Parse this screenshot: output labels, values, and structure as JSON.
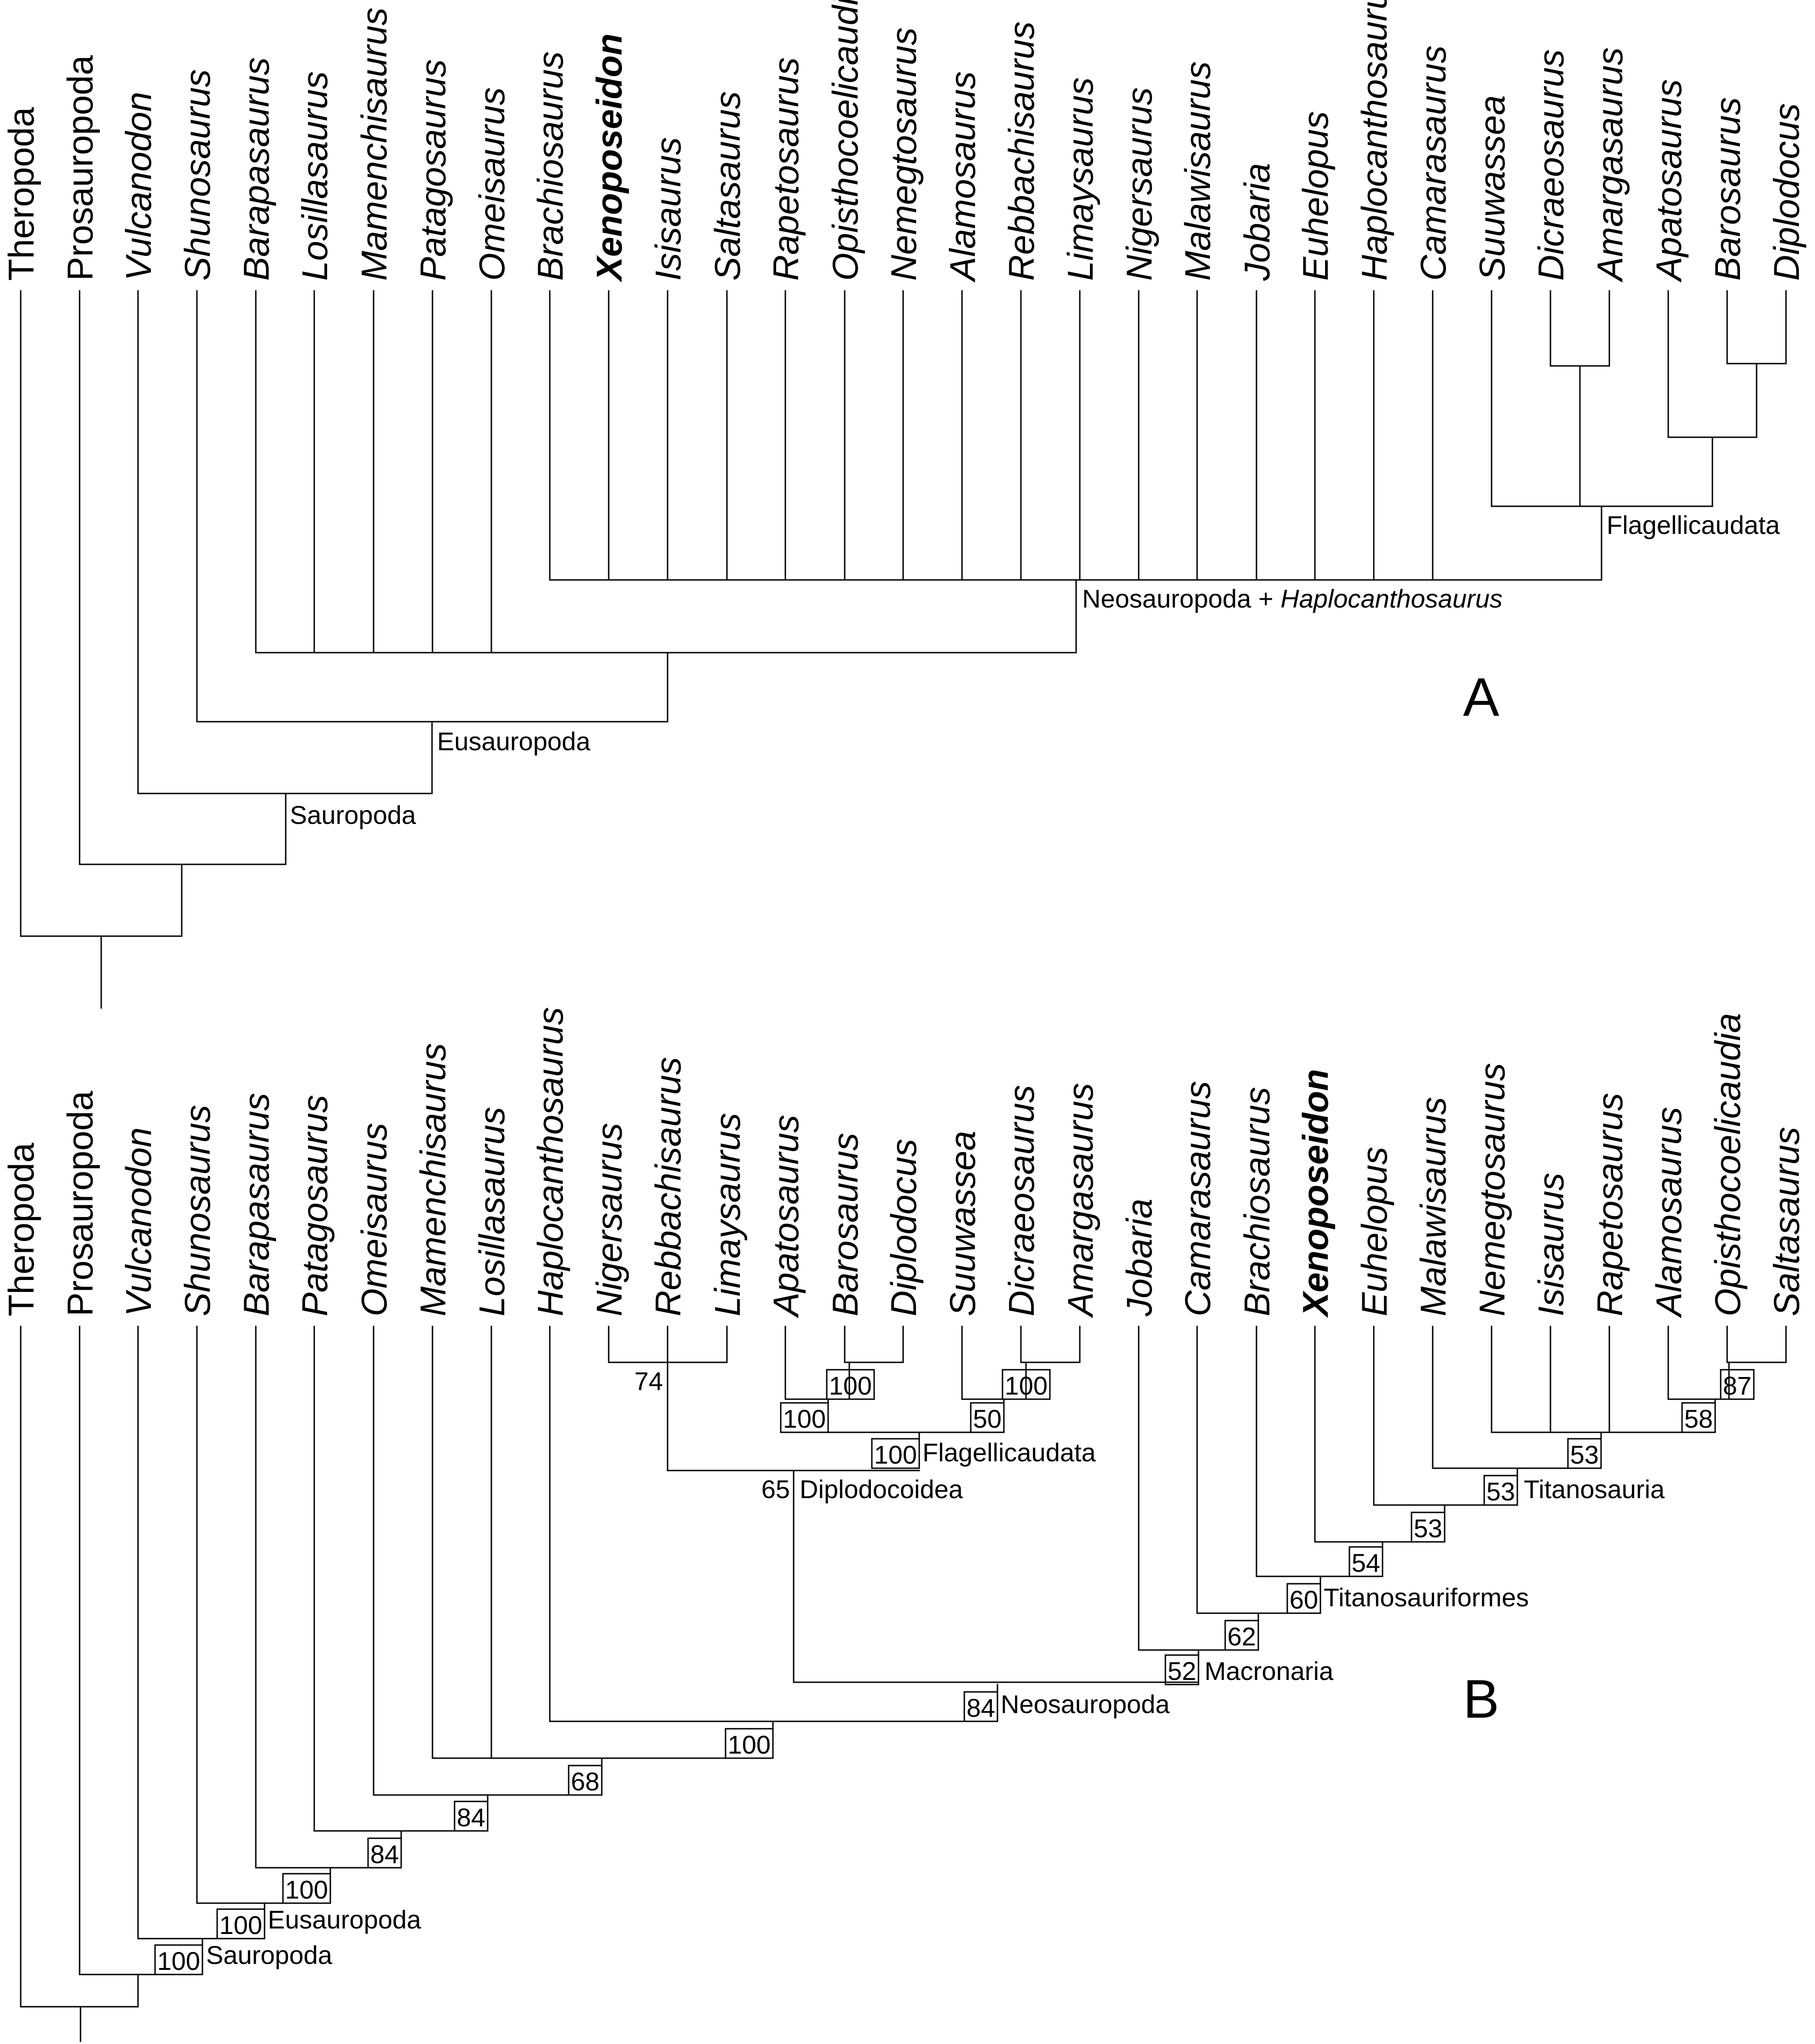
{
  "panel_a": {
    "letter": "A",
    "taxa": [
      {
        "name": "Theropoda",
        "style": "roman"
      },
      {
        "name": "Prosauropoda",
        "style": "roman"
      },
      {
        "name": "Vulcanodon",
        "style": "italic"
      },
      {
        "name": "Shunosaurus",
        "style": "italic"
      },
      {
        "name": "Barapasaurus",
        "style": "italic"
      },
      {
        "name": "Losillasaurus",
        "style": "italic"
      },
      {
        "name": "Mamenchisaurus",
        "style": "italic"
      },
      {
        "name": "Patagosaurus",
        "style": "italic"
      },
      {
        "name": "Omeisaurus",
        "style": "italic"
      },
      {
        "name": "Brachiosaurus",
        "style": "italic"
      },
      {
        "name": "Xenoposeidon",
        "style": "bold"
      },
      {
        "name": "Isisaurus",
        "style": "italic"
      },
      {
        "name": "Saltasaurus",
        "style": "italic"
      },
      {
        "name": "Rapetosaurus",
        "style": "italic"
      },
      {
        "name": "Opisthocoelicaudia",
        "style": "italic"
      },
      {
        "name": "Nemegtosaurus",
        "style": "italic"
      },
      {
        "name": "Alamosaurus",
        "style": "italic"
      },
      {
        "name": "Rebbachisaurus",
        "style": "italic"
      },
      {
        "name": "Limaysaurus",
        "style": "italic"
      },
      {
        "name": "Nigersaurus",
        "style": "italic"
      },
      {
        "name": "Malawisaurus",
        "style": "italic"
      },
      {
        "name": "Jobaria",
        "style": "italic"
      },
      {
        "name": "Euhelopus",
        "style": "italic"
      },
      {
        "name": "Haplocanthosaurus",
        "style": "italic"
      },
      {
        "name": "Camarasaurus",
        "style": "italic"
      },
      {
        "name": "Suuwassea",
        "style": "italic"
      },
      {
        "name": "Dicraeosaurus",
        "style": "italic"
      },
      {
        "name": "Amargasaurus",
        "style": "italic"
      },
      {
        "name": "Apatosaurus",
        "style": "italic"
      },
      {
        "name": "Barosaurus",
        "style": "italic"
      },
      {
        "name": "Diplodocus",
        "style": "italic"
      }
    ],
    "clades": {
      "flagellicaudata": "Flagellicaudata",
      "neosauropoda_prefix": "Neosauropoda + ",
      "neosauropoda_italic": "Haplocanthosaurus",
      "eusauropoda": "Eusauropoda",
      "sauropoda": "Sauropoda"
    }
  },
  "panel_b": {
    "letter": "B",
    "taxa": [
      {
        "name": "Theropoda",
        "style": "roman"
      },
      {
        "name": "Prosauropoda",
        "style": "roman"
      },
      {
        "name": "Vulcanodon",
        "style": "italic"
      },
      {
        "name": "Shunosaurus",
        "style": "italic"
      },
      {
        "name": "Barapasaurus",
        "style": "italic"
      },
      {
        "name": "Patagosaurus",
        "style": "italic"
      },
      {
        "name": "Omeisaurus",
        "style": "italic"
      },
      {
        "name": "Mamenchisaurus",
        "style": "italic"
      },
      {
        "name": "Losillasaurus",
        "style": "italic"
      },
      {
        "name": "Haplocanthosaurus",
        "style": "italic"
      },
      {
        "name": "Nigersaurus",
        "style": "italic"
      },
      {
        "name": "Rebbachisaurus",
        "style": "italic"
      },
      {
        "name": "Limaysaurus",
        "style": "italic"
      },
      {
        "name": "Apatosaurus",
        "style": "italic"
      },
      {
        "name": "Barosaurus",
        "style": "italic"
      },
      {
        "name": "Diplodocus",
        "style": "italic"
      },
      {
        "name": "Suuwassea",
        "style": "italic"
      },
      {
        "name": "Dicraeosaurus",
        "style": "italic"
      },
      {
        "name": "Amargasaurus",
        "style": "italic"
      },
      {
        "name": "Jobaria",
        "style": "italic"
      },
      {
        "name": "Camarasaurus",
        "style": "italic"
      },
      {
        "name": "Brachiosaurus",
        "style": "italic"
      },
      {
        "name": "Xenoposeidon",
        "style": "bold"
      },
      {
        "name": "Euhelopus",
        "style": "italic"
      },
      {
        "name": "Malawisaurus",
        "style": "italic"
      },
      {
        "name": "Nemegtosaurus",
        "style": "italic"
      },
      {
        "name": "Isisaurus",
        "style": "italic"
      },
      {
        "name": "Rapetosaurus",
        "style": "italic"
      },
      {
        "name": "Alamosaurus",
        "style": "italic"
      },
      {
        "name": "Opisthocoelicaudia",
        "style": "italic"
      },
      {
        "name": "Saltasaurus",
        "style": "italic"
      }
    ],
    "support": {
      "rebbachisauridae": "74",
      "diplodocidae_inner": "100",
      "dicraeosauridae": "100",
      "diplodocidae": "100",
      "suuwassea_dicraeo": "50",
      "flagellicaudata": "100",
      "diplodocoidea": "65",
      "saltasaurinae": "87",
      "alamo_saltasaurus": "58",
      "lithostrotia": "53",
      "titanosauria": "53",
      "euhelopus_node": "53",
      "xenoposeidon_node": "54",
      "titanosauriformes": "60",
      "camarasaurus_node": "62",
      "macronaria": "52",
      "neosauropoda": "84",
      "haplocanthosaurus_node": "100",
      "mamenchisauridae": "68",
      "omeisaurus_node": "84",
      "patagosaurus_node": "84",
      "barapasaurus_node": "100",
      "eusauropoda": "100",
      "sauropoda": "100"
    },
    "clades": {
      "flagellicaudata": "Flagellicaudata",
      "diplodocoidea": "Diplodocoidea",
      "titanosauria": "Titanosauria",
      "titanosauriformes": "Titanosauriformes",
      "macronaria": "Macronaria",
      "neosauropoda": "Neosauropoda",
      "eusauropoda": "Eusauropoda",
      "sauropoda": "Sauropoda"
    }
  }
}
